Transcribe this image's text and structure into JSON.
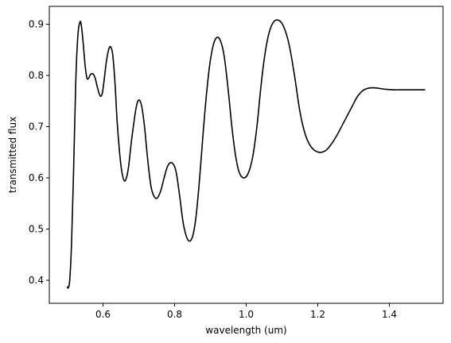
{
  "chart_data": {
    "type": "line",
    "xlabel": "wavelength (um)",
    "ylabel": "transmitted flux",
    "xlim": [
      0.45,
      1.55
    ],
    "ylim": [
      0.355,
      0.935
    ],
    "grid": false,
    "x_ticks": [
      0.6,
      0.8,
      1.0,
      1.2,
      1.4
    ],
    "x_tick_labels": [
      "0.6",
      "0.8",
      "1.0",
      "1.2",
      "1.4"
    ],
    "y_ticks": [
      0.4,
      0.5,
      0.6,
      0.7,
      0.8,
      0.9
    ],
    "y_tick_labels": [
      "0.4",
      "0.5",
      "0.6",
      "0.7",
      "0.8",
      "0.9"
    ],
    "series": [
      {
        "color": "#000000",
        "x": [
          0.5,
          0.503,
          0.507,
          0.512,
          0.518,
          0.524,
          0.53,
          0.536,
          0.54,
          0.545,
          0.55,
          0.555,
          0.56,
          0.565,
          0.572,
          0.578,
          0.585,
          0.592,
          0.598,
          0.603,
          0.61,
          0.618,
          0.624,
          0.628,
          0.634,
          0.64,
          0.65,
          0.66,
          0.67,
          0.68,
          0.692,
          0.7,
          0.708,
          0.716,
          0.725,
          0.735,
          0.748,
          0.76,
          0.77,
          0.78,
          0.79,
          0.8,
          0.806,
          0.815,
          0.825,
          0.838,
          0.85,
          0.86,
          0.87,
          0.88,
          0.89,
          0.9,
          0.912,
          0.925,
          0.938,
          0.95,
          0.96,
          0.97,
          0.98,
          0.992,
          1.005,
          1.018,
          1.03,
          1.04,
          1.05,
          1.062,
          1.075,
          1.09,
          1.105,
          1.12,
          1.135,
          1.15,
          1.165,
          1.18,
          1.195,
          1.21,
          1.225,
          1.24,
          1.255,
          1.27,
          1.285,
          1.3,
          1.31,
          1.325,
          1.34,
          1.355,
          1.37,
          1.39,
          1.41,
          1.43,
          1.45,
          1.47,
          1.485,
          1.5
        ],
        "y": [
          0.388,
          0.385,
          0.4,
          0.47,
          0.62,
          0.79,
          0.88,
          0.905,
          0.895,
          0.86,
          0.82,
          0.795,
          0.795,
          0.802,
          0.803,
          0.795,
          0.775,
          0.76,
          0.765,
          0.79,
          0.83,
          0.855,
          0.852,
          0.835,
          0.78,
          0.705,
          0.625,
          0.594,
          0.615,
          0.675,
          0.735,
          0.752,
          0.74,
          0.7,
          0.635,
          0.58,
          0.56,
          0.572,
          0.598,
          0.622,
          0.63,
          0.622,
          0.605,
          0.56,
          0.508,
          0.478,
          0.485,
          0.525,
          0.6,
          0.69,
          0.77,
          0.83,
          0.868,
          0.872,
          0.84,
          0.77,
          0.7,
          0.645,
          0.612,
          0.6,
          0.608,
          0.64,
          0.7,
          0.77,
          0.83,
          0.878,
          0.903,
          0.908,
          0.895,
          0.86,
          0.8,
          0.73,
          0.685,
          0.662,
          0.652,
          0.65,
          0.655,
          0.668,
          0.685,
          0.705,
          0.725,
          0.745,
          0.758,
          0.77,
          0.775,
          0.776,
          0.775,
          0.773,
          0.772,
          0.772,
          0.772,
          0.772,
          0.772,
          0.772
        ]
      }
    ]
  }
}
